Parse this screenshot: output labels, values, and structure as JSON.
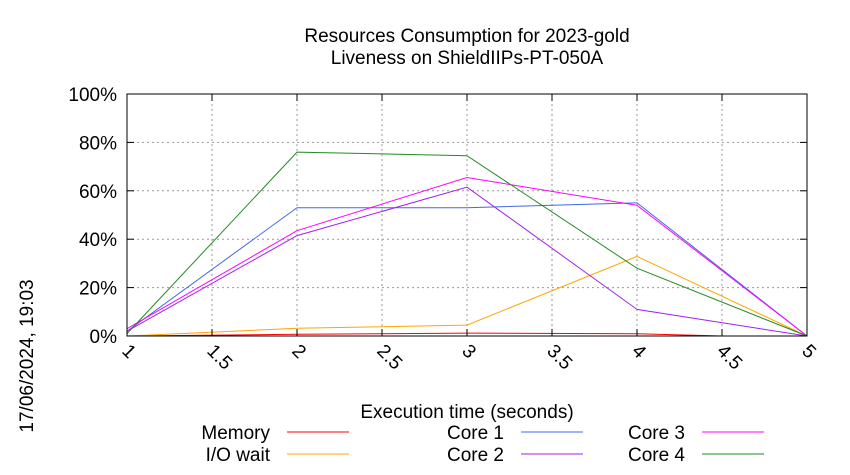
{
  "chart_data": {
    "type": "line",
    "title": [
      "Resources Consumption for 2023-gold",
      "Liveness on ShieldIIPs-PT-050A"
    ],
    "xlabel": "Execution time (seconds)",
    "ylabel": "",
    "side_label": "17/06/2024, 19:03",
    "xlim": [
      1,
      5
    ],
    "ylim": [
      0,
      100
    ],
    "x_ticks": [
      "1",
      "1.5",
      "2",
      "2.5",
      "3",
      "3.5",
      "4",
      "4.5",
      "5"
    ],
    "y_ticks": [
      "0%",
      "20%",
      "40%",
      "60%",
      "80%",
      "100%"
    ],
    "grid": true,
    "legend_position": "bottom",
    "series": [
      {
        "name": "Memory",
        "color": "#ff0000",
        "x": [
          1,
          2,
          3,
          4,
          4.5
        ],
        "y": [
          0,
          0.7,
          1.2,
          0.9,
          0
        ]
      },
      {
        "name": "I/O wait",
        "color": "#ffa500",
        "x": [
          1,
          2,
          3,
          4,
          5
        ],
        "y": [
          0,
          3.2,
          4.5,
          32.9,
          0
        ]
      },
      {
        "name": "Core 1",
        "color": "#4169e1",
        "x": [
          1,
          2,
          3,
          4,
          5
        ],
        "y": [
          2,
          53,
          53,
          55,
          0
        ]
      },
      {
        "name": "Core 2",
        "color": "#a020f0",
        "x": [
          1,
          2,
          3,
          4,
          5
        ],
        "y": [
          2,
          41.5,
          61.5,
          11,
          0
        ]
      },
      {
        "name": "Core 3",
        "color": "#ff00ff",
        "x": [
          1,
          2,
          3,
          4,
          5
        ],
        "y": [
          3,
          43.5,
          65.5,
          54,
          0
        ]
      },
      {
        "name": "Core 4",
        "color": "#228b22",
        "x": [
          1,
          2,
          3,
          4,
          5
        ],
        "y": [
          1,
          76,
          74.5,
          28,
          0
        ]
      }
    ]
  }
}
